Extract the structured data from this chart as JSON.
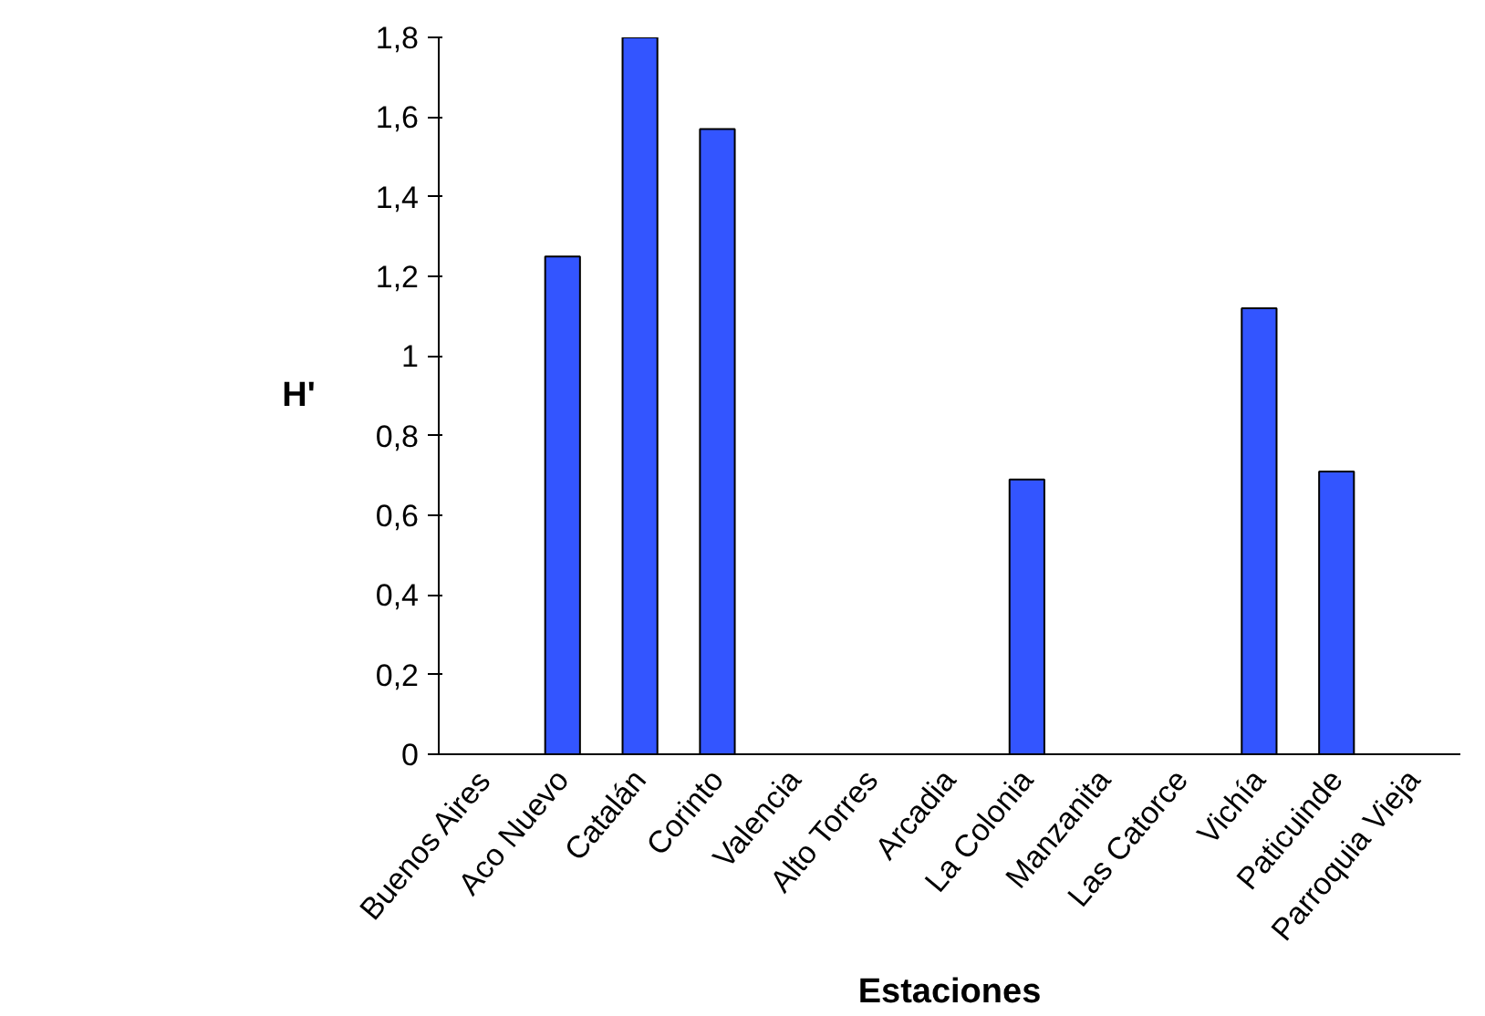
{
  "chart_data": {
    "type": "bar",
    "xlabel": "Estaciones",
    "ylabel": "H'",
    "categories": [
      "Buenos Aires",
      "Aco Nuevo",
      "Catalán",
      "Corinto",
      "Valencia",
      "Alto Torres",
      "Arcadia",
      "La Colonia",
      "Manzanita",
      "Las Catorce",
      "Vichía",
      "Paticuinde",
      "Parroquia Vieja"
    ],
    "values": [
      0,
      1.25,
      1.8,
      1.57,
      0,
      0,
      0,
      0.69,
      0,
      0,
      1.12,
      0.71,
      0
    ],
    "color": "#3355ff",
    "ylim": [
      0,
      1.8
    ],
    "yticks": [
      0,
      {
        "value": 0.2,
        "label": "0,2"
      },
      {
        "value": 0.4,
        "label": "0,4"
      },
      {
        "value": 0.6,
        "label": "0,6"
      },
      {
        "value": 0.8,
        "label": "0,8"
      },
      1,
      {
        "value": 1.2,
        "label": "1,2"
      },
      {
        "value": 1.4,
        "label": "1,4"
      },
      {
        "value": 1.6,
        "label": "1,6"
      },
      {
        "value": 1.8,
        "label": "1,8"
      }
    ],
    "grid": false
  }
}
